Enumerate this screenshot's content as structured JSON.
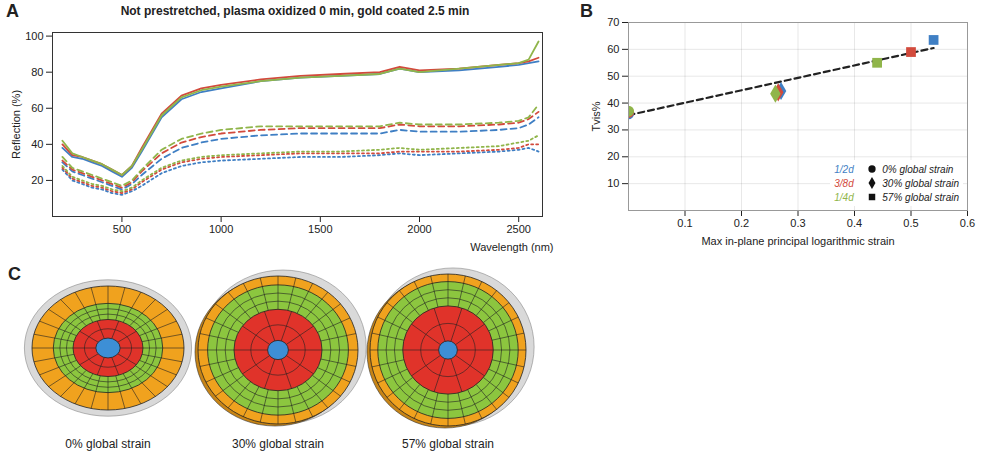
{
  "chart_data": [
    {
      "panel": "A",
      "type": "line",
      "title": "Not prestretched, plasma oxidized 0 min, gold coated 2.5 min",
      "xlabel": "Wavelength (nm)",
      "ylabel": "Reflection (%)",
      "x": [
        200,
        250,
        300,
        350,
        400,
        450,
        500,
        550,
        600,
        700,
        800,
        900,
        1000,
        1200,
        1400,
        1600,
        1800,
        1900,
        2000,
        2200,
        2400,
        2500,
        2550,
        2600
      ],
      "xlim": [
        150,
        2620
      ],
      "xticks": [
        500,
        1000,
        1500,
        2000,
        2500
      ],
      "ylim": [
        0,
        102
      ],
      "yticks": [
        20,
        40,
        60,
        80,
        100
      ],
      "grid": false,
      "series": [
        {
          "color": "#3f7fc4",
          "line_style": "solid",
          "values": [
            38,
            33,
            32,
            30,
            28,
            25,
            22,
            27,
            36,
            55,
            65,
            69,
            71,
            75,
            77,
            78,
            79,
            82,
            80,
            81,
            83,
            84,
            85,
            86
          ]
        },
        {
          "color": "#d24a3c",
          "line_style": "solid",
          "values": [
            40,
            34,
            33,
            31,
            29,
            26,
            23,
            28,
            38,
            57,
            67,
            71,
            73,
            76,
            78,
            79,
            80,
            83,
            81,
            82,
            84,
            85,
            86,
            88
          ]
        },
        {
          "color": "#90b54a",
          "line_style": "solid",
          "values": [
            42,
            35,
            33,
            31,
            29,
            26,
            23,
            28,
            37,
            56,
            66,
            70,
            72,
            75,
            77,
            78,
            79,
            82,
            80,
            82,
            84,
            85,
            87,
            97
          ]
        },
        {
          "color": "#3f7fc4",
          "line_style": "dashed",
          "values": [
            30,
            25,
            23,
            21,
            19,
            17,
            15,
            18,
            23,
            32,
            38,
            41,
            43,
            45,
            46,
            46,
            46,
            48,
            47,
            47,
            48,
            49,
            51,
            55
          ]
        },
        {
          "color": "#d24a3c",
          "line_style": "dashed",
          "values": [
            31,
            26,
            24,
            22,
            20,
            18,
            16,
            19,
            25,
            35,
            41,
            44,
            46,
            48,
            49,
            49,
            49,
            51,
            50,
            50,
            51,
            52,
            54,
            58
          ]
        },
        {
          "color": "#90b54a",
          "line_style": "dashed",
          "values": [
            33,
            27,
            25,
            23,
            21,
            19,
            17,
            20,
            26,
            37,
            43,
            46,
            48,
            50,
            50,
            50,
            50,
            52,
            51,
            51,
            52,
            53,
            55,
            62
          ]
        },
        {
          "color": "#3f7fc4",
          "line_style": "dotted",
          "values": [
            26,
            20,
            18,
            16,
            15,
            13,
            12,
            14,
            17,
            24,
            28,
            30,
            31,
            32,
            33,
            33,
            34,
            35,
            34,
            35,
            36,
            37,
            38,
            36
          ]
        },
        {
          "color": "#d24a3c",
          "line_style": "dotted",
          "values": [
            27,
            21,
            19,
            17,
            16,
            14,
            13,
            15,
            19,
            26,
            30,
            32,
            33,
            34,
            35,
            35,
            35,
            36,
            36,
            36,
            37,
            38,
            40,
            40
          ]
        },
        {
          "color": "#90b54a",
          "line_style": "dotted",
          "values": [
            28,
            22,
            20,
            18,
            17,
            15,
            14,
            16,
            20,
            27,
            31,
            33,
            34,
            35,
            36,
            36,
            37,
            38,
            37,
            38,
            39,
            41,
            42,
            45
          ]
        }
      ]
    },
    {
      "panel": "B",
      "type": "scatter",
      "xlabel": "Max in-plane principal logarithmic strain",
      "ylabel": "Tvis%",
      "xlim": [
        0,
        0.6
      ],
      "xticks": [
        0.1,
        0.2,
        0.3,
        0.4,
        0.5,
        0.6
      ],
      "ylim": [
        0,
        70
      ],
      "yticks": [
        10,
        20,
        30,
        40,
        50,
        60,
        70
      ],
      "grid": true,
      "legend": "bottom-right",
      "strain_levels": [
        {
          "name": "0% global strain",
          "marker": "circle"
        },
        {
          "name": "30% global strain",
          "marker": "diamond"
        },
        {
          "name": "57% global strain",
          "marker": "square"
        }
      ],
      "series": [
        {
          "name": "1/2d",
          "color": "#3f7fc4",
          "x": [
            0,
            0.27,
            0.54
          ],
          "values": [
            36,
            44.5,
            63.5
          ]
        },
        {
          "name": "3/8d",
          "color": "#d24a3c",
          "x": [
            0,
            0.265,
            0.5
          ],
          "values": [
            36.5,
            44,
            59
          ]
        },
        {
          "name": "1/4d",
          "color": "#90b54a",
          "x": [
            0,
            0.26,
            0.44
          ],
          "values": [
            37,
            43.5,
            55
          ]
        }
      ],
      "trendline": {
        "type": "line",
        "line_style": "dashed",
        "color": "#222222",
        "x": [
          0,
          0.54
        ],
        "values": [
          35.5,
          60.5
        ]
      }
    }
  ],
  "diagram": {
    "panel": "C",
    "items": [
      {
        "label": "0% global strain"
      },
      {
        "label": "30% global strain"
      },
      {
        "label": "57% global strain"
      }
    ]
  }
}
